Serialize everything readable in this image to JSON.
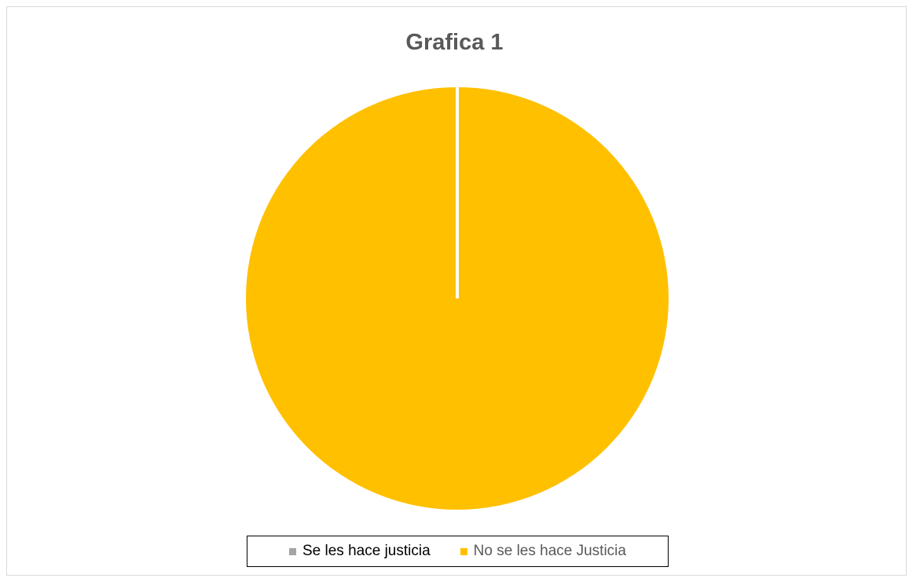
{
  "chart_data": {
    "type": "pie",
    "title": "Grafica 1",
    "categories": [
      "Se les hace justicia",
      "No se les hace Justicia"
    ],
    "values": [
      0,
      100
    ],
    "colors": [
      "#a5a5a5",
      "#ffc000"
    ],
    "legend_text_colors": [
      "#000000",
      "#595959"
    ],
    "legend_position": "bottom"
  }
}
